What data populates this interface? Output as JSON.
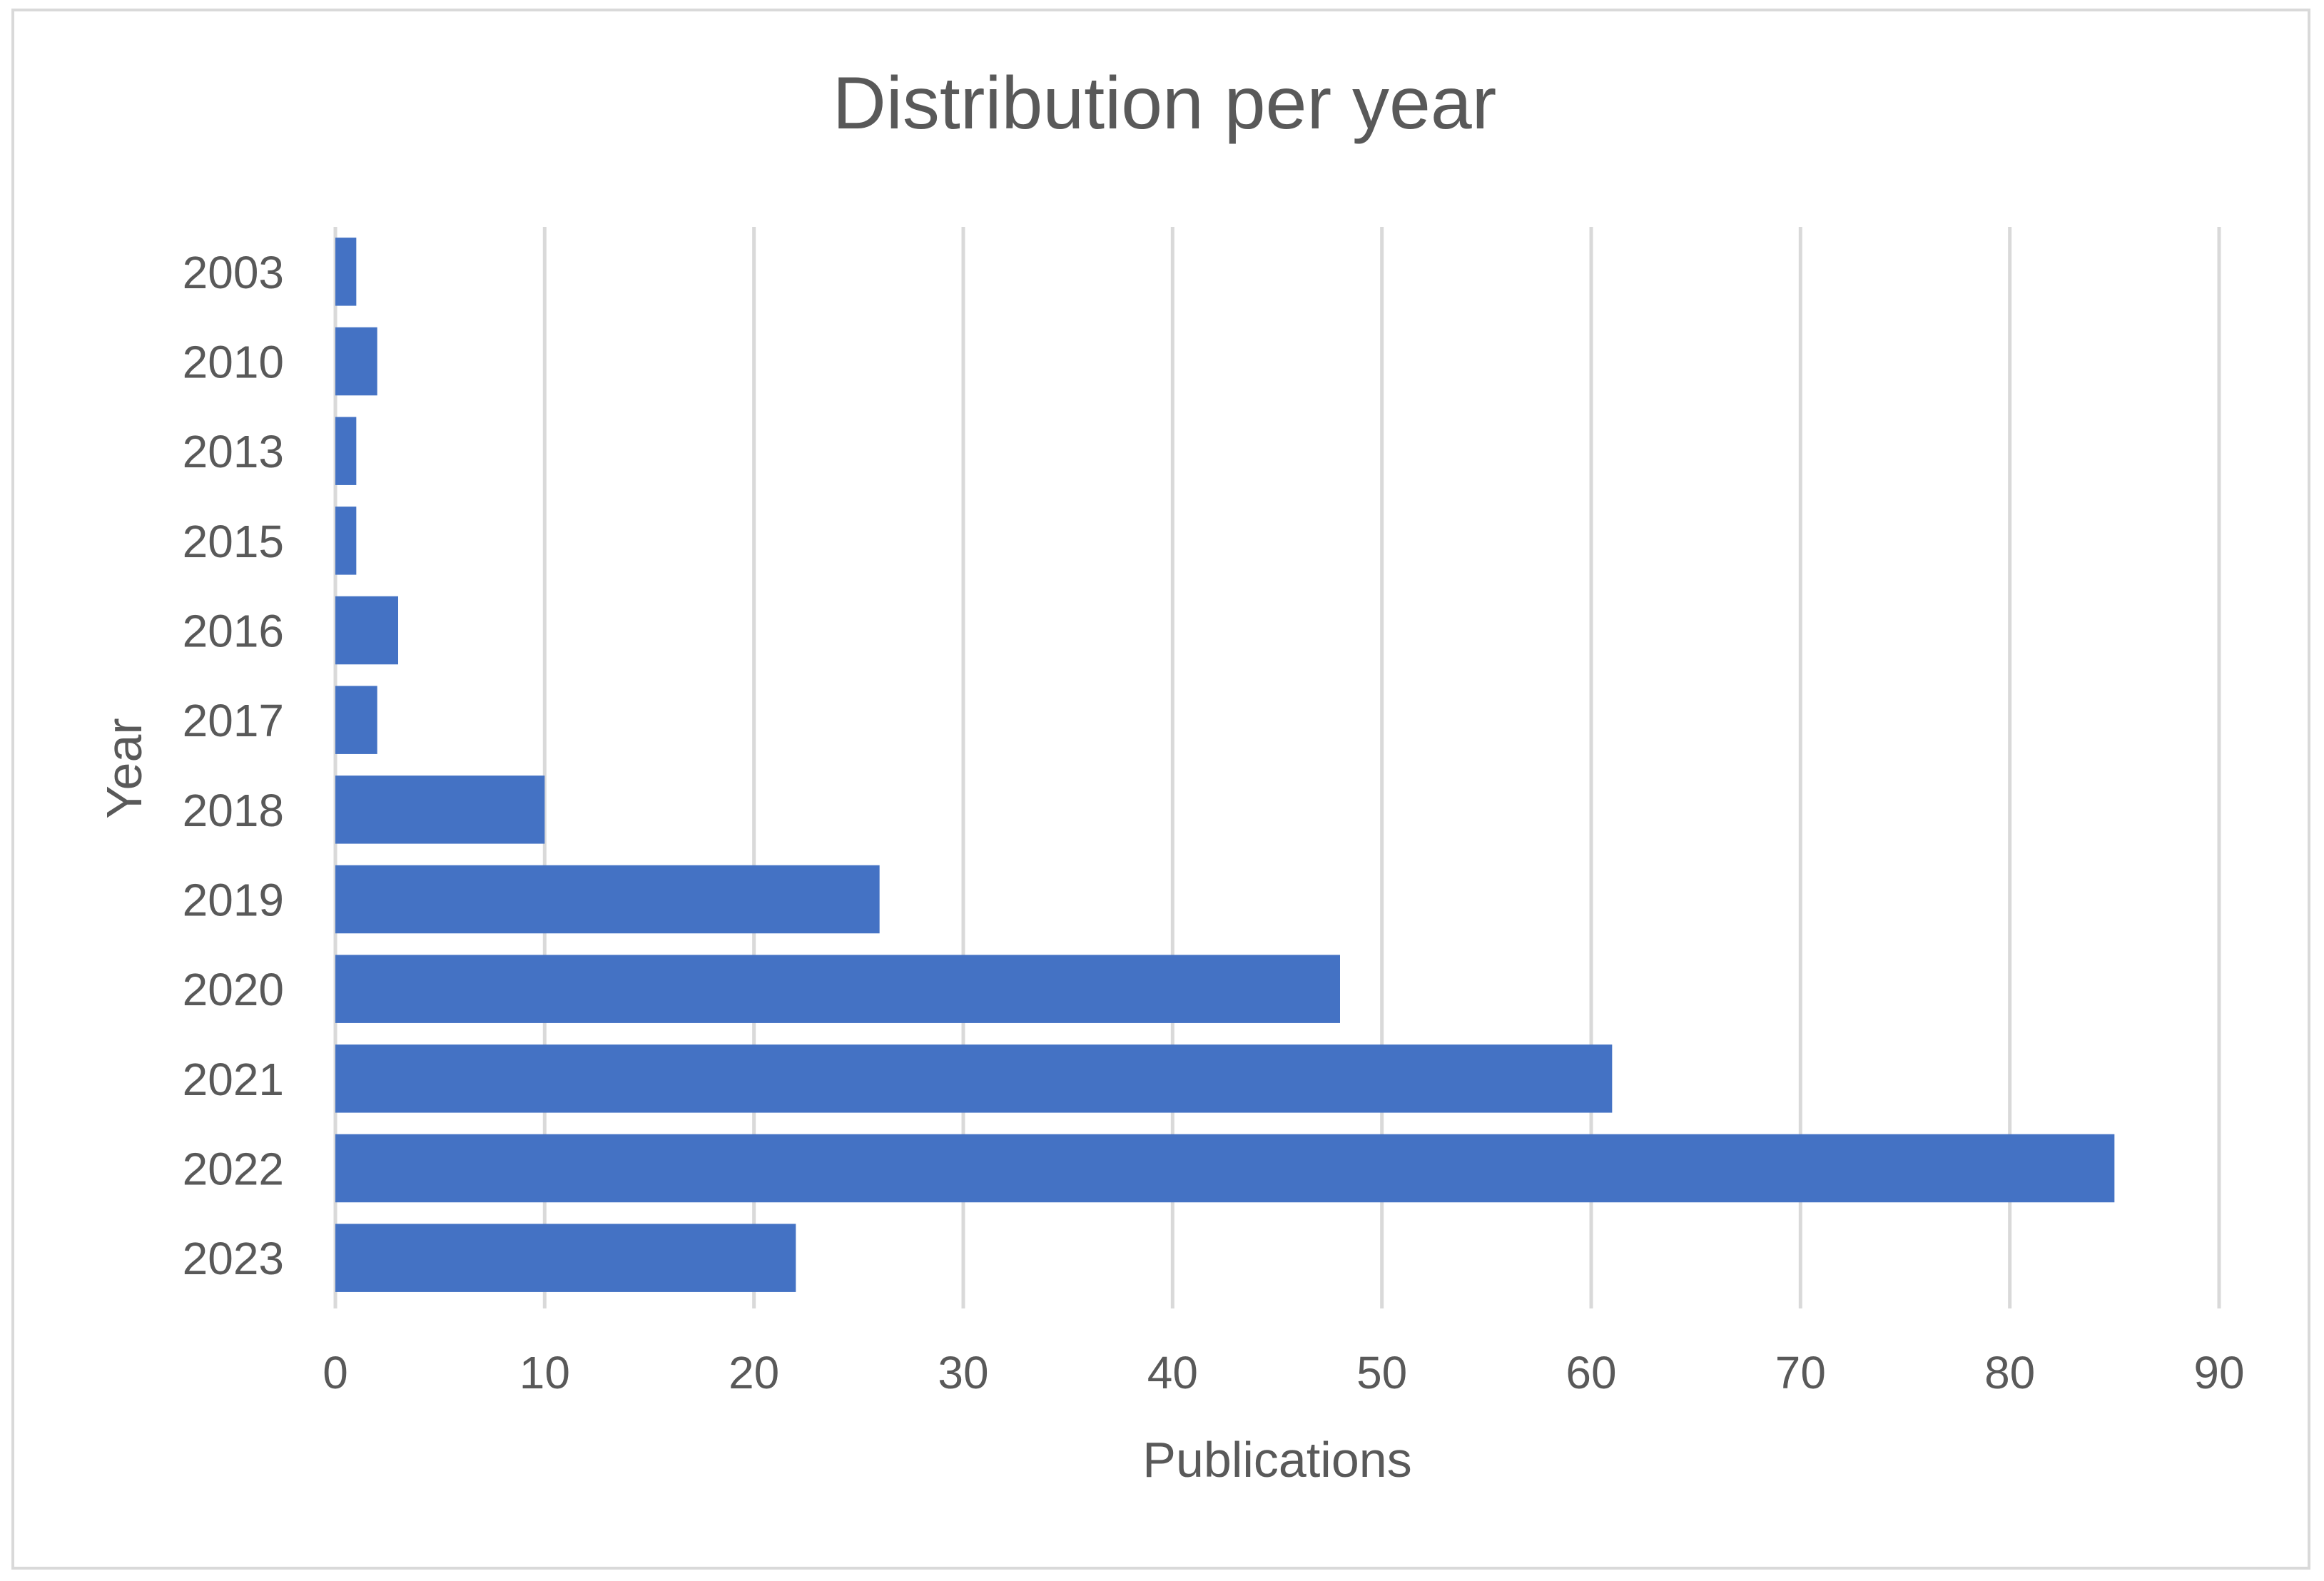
{
  "chart_data": {
    "type": "bar",
    "orientation": "horizontal",
    "title": "Distribution per year",
    "xlabel": "Publications",
    "ylabel": "Year",
    "categories": [
      "2003",
      "2010",
      "2013",
      "2015",
      "2016",
      "2017",
      "2018",
      "2019",
      "2020",
      "2021",
      "2022",
      "2023"
    ],
    "values": [
      1,
      2,
      1,
      1,
      3,
      2,
      10,
      26,
      48,
      61,
      85,
      22
    ],
    "xlim": [
      0,
      90
    ],
    "x_ticks": [
      0,
      10,
      20,
      30,
      40,
      50,
      60,
      70,
      80,
      90
    ],
    "x_tick_labels": [
      "0",
      "10",
      "20",
      "30",
      "40",
      "50",
      "60",
      "70",
      "80",
      "90"
    ],
    "category_order": "top-to-bottom",
    "grid": "vertical",
    "legend": "none",
    "colors": {
      "bar": "#4472c4",
      "grid": "#d9d9d9",
      "text": "#595959",
      "frame": "#d9d9d9"
    }
  }
}
